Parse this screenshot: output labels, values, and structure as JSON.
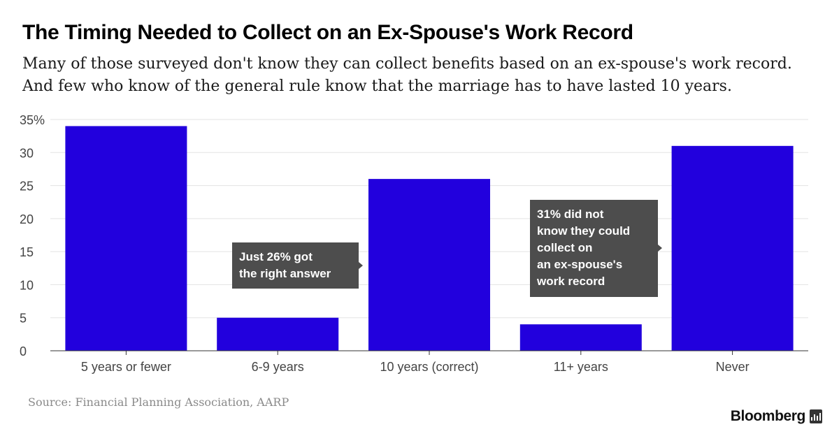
{
  "header": {
    "title": "The Timing Needed to Collect on an Ex-Spouse's Work Record",
    "subtitle_lines": [
      "Many of those surveyed don't know they can collect benefits based on an ex-spouse's work record.",
      "And few who know of the general rule know that the marriage has to have lasted 10 years."
    ]
  },
  "chart_data": {
    "type": "bar",
    "categories": [
      "5 years or fewer",
      "6-9 years",
      "10 years (correct)",
      "11+ years",
      "Never"
    ],
    "values": [
      34,
      5,
      26,
      4,
      31
    ],
    "ylim": [
      0,
      35
    ],
    "yticks": [
      0,
      5,
      10,
      15,
      20,
      25,
      30,
      35
    ],
    "ytick_labels": [
      "0",
      "5",
      "10",
      "15",
      "20",
      "25",
      "30",
      "35%"
    ],
    "grid": true,
    "bar_color": "#2200dd",
    "annotations": [
      {
        "lines": [
          "Just 26% got",
          "the right answer"
        ],
        "points_to": "10 years (correct)"
      },
      {
        "lines": [
          "31% did not",
          "know they could",
          "collect on",
          "an ex-spouse's",
          "work record"
        ],
        "points_to": "Never"
      }
    ]
  },
  "footer": {
    "source": "Source: Financial Planning Association, AARP",
    "brand": "Bloomberg",
    "brand_icon": "bloomberg-chart-icon"
  }
}
